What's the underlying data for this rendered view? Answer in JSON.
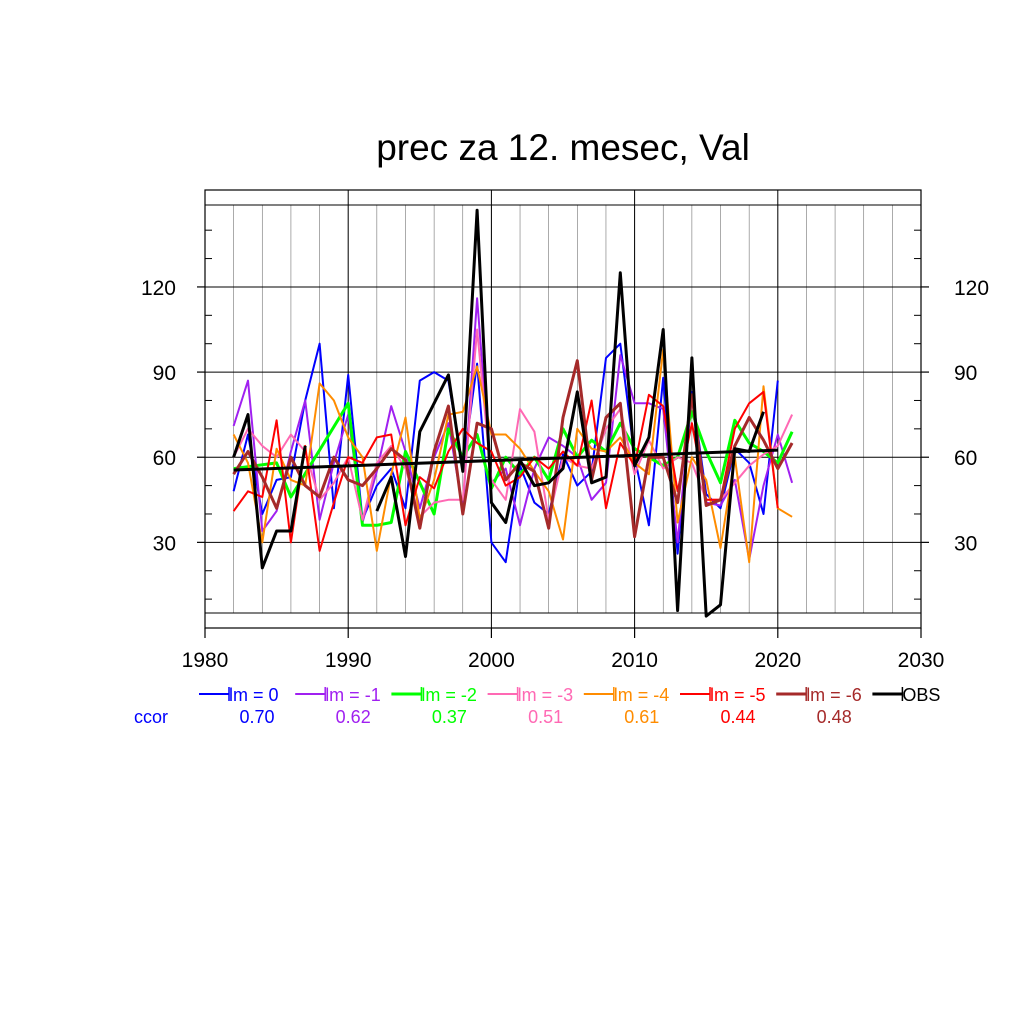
{
  "title": "prec za 12. mesec, Val",
  "chart_data": {
    "type": "line",
    "title": "prec za 12. mesec, Val",
    "xlabel": "",
    "ylabel": "",
    "xlim": [
      1980,
      2030
    ],
    "ylim": [
      5,
      148
    ],
    "x_ticks": [
      1980,
      1990,
      2000,
      2010,
      2020,
      2030
    ],
    "y_ticks": [
      30,
      60,
      90,
      120
    ],
    "grid": true,
    "legend_position": "bottom",
    "ccor_label": "ccor",
    "series": [
      {
        "name": "lm = 0",
        "color": "#0000ff",
        "ccor": "0.70",
        "stroke": 2,
        "x": [
          1982,
          1983,
          1984,
          1985,
          1986,
          1987,
          1988,
          1989,
          1990,
          1991,
          1992,
          1993,
          1994,
          1995,
          1996,
          1997,
          1998,
          1999,
          2000,
          2001,
          2002,
          2003,
          2004,
          2005,
          2006,
          2007,
          2008,
          2009,
          2010,
          2011,
          2012,
          2013,
          2014,
          2015,
          2016,
          2017,
          2018,
          2019,
          2020
        ],
        "y": [
          48,
          68,
          40,
          52,
          53,
          80,
          100,
          42,
          89,
          38,
          50,
          56,
          42,
          87,
          90,
          87,
          56,
          93,
          30,
          23,
          57,
          44,
          40,
          61,
          50,
          55,
          95,
          100,
          60,
          36,
          88,
          26,
          83,
          47,
          42,
          63,
          58,
          40,
          87
        ]
      },
      {
        "name": "lm = -1",
        "color": "#a020f0",
        "ccor": "0.62",
        "stroke": 2,
        "x": [
          1982,
          1983,
          1984,
          1985,
          1986,
          1987,
          1988,
          1989,
          1990,
          1991,
          1992,
          1993,
          1994,
          1995,
          1996,
          1997,
          1998,
          1999,
          2000,
          2001,
          2002,
          2003,
          2004,
          2005,
          2006,
          2007,
          2008,
          2009,
          2010,
          2011,
          2012,
          2013,
          2014,
          2015,
          2016,
          2017,
          2018,
          2019,
          2020,
          2021
        ],
        "y": [
          71,
          87,
          34,
          41,
          62,
          80,
          38,
          58,
          75,
          37,
          55,
          78,
          62,
          42,
          60,
          72,
          42,
          116,
          51,
          56,
          36,
          56,
          67,
          64,
          60,
          45,
          51,
          96,
          79,
          79,
          77,
          30,
          82,
          44,
          43,
          52,
          24,
          50,
          68,
          51
        ]
      },
      {
        "name": "lm = -2",
        "color": "#00ff00",
        "ccor": "0.37",
        "stroke": 3,
        "x": [
          1982,
          1985,
          1986,
          1990,
          1991,
          1992,
          1993,
          1994,
          1996,
          1997,
          1998,
          1999,
          2000,
          2001,
          2002,
          2003,
          2004,
          2005,
          2006,
          2007,
          2008,
          2009,
          2010,
          2011,
          2012,
          2013,
          2014,
          2015,
          2016,
          2017,
          2018,
          2019,
          2020,
          2021
        ],
        "y": [
          56,
          58,
          46,
          79,
          36,
          36,
          37,
          62,
          40,
          70,
          60,
          68,
          49,
          60,
          54,
          60,
          52,
          70,
          60,
          66,
          62,
          72,
          63,
          60,
          57,
          60,
          76,
          62,
          51,
          73,
          65,
          62,
          58,
          69
        ]
      },
      {
        "name": "lm = -3",
        "color": "#ff69b4",
        "ccor": "0.51",
        "stroke": 2,
        "x": [
          1982,
          1983,
          1984,
          1985,
          1986,
          1987,
          1988,
          1989,
          1990,
          1991,
          1992,
          1993,
          1994,
          1995,
          1996,
          1997,
          1998,
          1999,
          2000,
          2001,
          2002,
          2003,
          2004,
          2005,
          2006,
          2007,
          2008,
          2009,
          2010,
          2011,
          2012,
          2013,
          2014,
          2015,
          2016,
          2017,
          2018,
          2019,
          2020,
          2021
        ],
        "y": [
          60,
          70,
          64,
          60,
          68,
          62,
          45,
          51,
          60,
          38,
          58,
          64,
          56,
          39,
          44,
          45,
          45,
          105,
          52,
          45,
          77,
          69,
          38,
          60,
          57,
          56,
          70,
          77,
          54,
          66,
          56,
          60,
          58,
          45,
          45,
          51,
          57,
          61,
          64,
          75
        ]
      },
      {
        "name": "lm = -4",
        "color": "#ff8c00",
        "ccor": "0.61",
        "stroke": 2,
        "x": [
          1982,
          1983,
          1984,
          1985,
          1986,
          1987,
          1988,
          1989,
          1990,
          1991,
          1992,
          1993,
          1994,
          1995,
          1996,
          1997,
          1998,
          1999,
          2000,
          2001,
          2002,
          2003,
          2004,
          2005,
          2006,
          2007,
          2008,
          2009,
          2010,
          2011,
          2012,
          2013,
          2014,
          2015,
          2016,
          2017,
          2018,
          2019,
          2020,
          2021
        ],
        "y": [
          68,
          58,
          30,
          63,
          52,
          50,
          86,
          80,
          67,
          60,
          27,
          54,
          74,
          38,
          52,
          75,
          76,
          92,
          68,
          68,
          63,
          55,
          48,
          31,
          70,
          63,
          62,
          67,
          58,
          54,
          98,
          37,
          60,
          52,
          28,
          60,
          23,
          85,
          42,
          39
        ]
      },
      {
        "name": "lm = -5",
        "color": "#ff0000",
        "ccor": "0.44",
        "stroke": 2,
        "x": [
          1982,
          1983,
          1984,
          1985,
          1986,
          1987,
          1988,
          1989,
          1990,
          1991,
          1992,
          1993,
          1994,
          1995,
          1996,
          1997,
          1998,
          1999,
          2000,
          2001,
          2002,
          2003,
          2004,
          2005,
          2006,
          2007,
          2008,
          2009,
          2010,
          2011,
          2012,
          2013,
          2014,
          2015,
          2016,
          2017,
          2018,
          2019,
          2020
        ],
        "y": [
          41,
          48,
          46,
          73,
          30,
          64,
          27,
          44,
          60,
          58,
          67,
          68,
          36,
          53,
          49,
          62,
          70,
          65,
          62,
          50,
          53,
          60,
          56,
          62,
          57,
          80,
          42,
          65,
          57,
          82,
          78,
          48,
          72,
          45,
          45,
          70,
          79,
          83,
          42
        ]
      },
      {
        "name": "lm = -6",
        "color": "#a52a2a",
        "ccor": "0.48",
        "stroke": 3,
        "x": [
          1982,
          1983,
          1984,
          1985,
          1986,
          1987,
          1988,
          1989,
          1990,
          1991,
          1992,
          1993,
          1994,
          1995,
          1996,
          1997,
          1998,
          1999,
          2000,
          2001,
          2002,
          2003,
          2004,
          2005,
          2006,
          2007,
          2008,
          2009,
          2010,
          2011,
          2012,
          2013,
          2014,
          2015,
          2016,
          2017,
          2018,
          2019,
          2020,
          2021
        ],
        "y": [
          54,
          62,
          53,
          42,
          60,
          50,
          46,
          60,
          52,
          50,
          56,
          63,
          59,
          35,
          62,
          78,
          40,
          72,
          70,
          52,
          58,
          55,
          35,
          74,
          94,
          52,
          74,
          79,
          32,
          60,
          60,
          44,
          82,
          43,
          45,
          64,
          74,
          66,
          56,
          65
        ]
      },
      {
        "name": "OBS",
        "color": "#000000",
        "ccor": "",
        "stroke": 3,
        "x": [
          1982,
          1983,
          1984,
          1985,
          1986,
          1987,
          1988,
          1989,
          1990,
          1991,
          1992,
          1993,
          1994,
          1995,
          1996,
          1997,
          1998,
          1999,
          2000,
          2001,
          2002,
          2003,
          2004,
          2005,
          2006,
          2007,
          2008,
          2009,
          2010,
          2011,
          2012,
          2013,
          2014,
          2015,
          2016,
          2017,
          2018,
          2019
        ],
        "y": [
          60,
          75,
          21,
          34,
          34,
          64,
          null,
          null,
          null,
          null,
          41,
          53,
          25,
          69,
          79,
          89,
          55,
          147,
          44,
          37,
          59,
          50,
          51,
          56,
          83,
          51,
          53,
          125,
          57,
          67,
          105,
          6,
          95,
          4,
          8,
          63,
          62,
          76
        ]
      }
    ],
    "trend_line": {
      "color": "#000000",
      "x": [
        1982,
        2020
      ],
      "y": [
        55.5,
        62.5
      ]
    }
  }
}
